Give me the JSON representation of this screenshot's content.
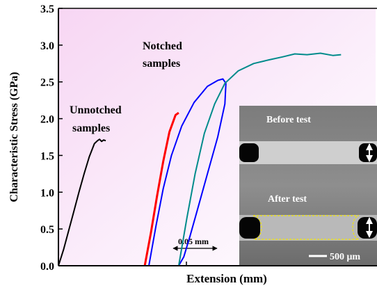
{
  "chart_data": {
    "type": "line",
    "xlabel": "Extension (mm)",
    "ylabel": "Characteristic Stress (GPa)",
    "ylim": [
      0,
      3.5
    ],
    "yticks": [
      0.0,
      0.5,
      1.0,
      1.5,
      2.0,
      2.5,
      3.0,
      3.5
    ],
    "ytick_labels": [
      "0.0",
      "0.5",
      "1.0",
      "1.5",
      "2.0",
      "2.5",
      "3.0",
      "3.5"
    ],
    "x_tick_labels": [],
    "xlim": [
      0,
      0.31
    ],
    "scale_bar": {
      "label": "0.05 mm",
      "length": 0.05
    },
    "annotations": {
      "unnotched": [
        "Unnotched",
        "samples"
      ],
      "notched": [
        "Notched",
        "samples"
      ]
    },
    "series": [
      {
        "color": "#000000",
        "x": [
          0.0,
          0.005,
          0.01,
          0.015,
          0.02,
          0.025,
          0.03,
          0.035,
          0.038,
          0.04,
          0.042,
          0.044,
          0.046
        ],
        "y": [
          0.0,
          0.22,
          0.48,
          0.74,
          1.0,
          1.25,
          1.48,
          1.66,
          1.7,
          1.72,
          1.69,
          1.71,
          1.7
        ]
      },
      {
        "color": "#ff0000",
        "x": [
          0.084,
          0.09,
          0.096,
          0.102,
          0.108,
          0.114,
          0.117
        ],
        "y": [
          0.0,
          0.45,
          0.95,
          1.42,
          1.82,
          2.05,
          2.08
        ]
      },
      {
        "color": "#0000ff",
        "x": [
          0.088,
          0.095,
          0.102,
          0.11,
          0.12,
          0.132,
          0.145,
          0.155,
          0.16,
          0.163,
          0.162,
          0.155,
          0.145,
          0.135,
          0.128,
          0.122,
          0.117
        ],
        "y": [
          0.0,
          0.55,
          1.05,
          1.5,
          1.9,
          2.22,
          2.44,
          2.52,
          2.54,
          2.48,
          2.2,
          1.75,
          1.25,
          0.75,
          0.4,
          0.12,
          0.0
        ]
      },
      {
        "color": "#008b8b",
        "x": [
          0.117,
          0.125,
          0.133,
          0.142,
          0.152,
          0.162,
          0.175,
          0.19,
          0.205,
          0.218,
          0.23,
          0.242,
          0.255,
          0.267,
          0.275
        ],
        "y": [
          0.0,
          0.65,
          1.25,
          1.8,
          2.2,
          2.48,
          2.65,
          2.75,
          2.8,
          2.84,
          2.88,
          2.87,
          2.89,
          2.86,
          2.87
        ]
      }
    ]
  },
  "inset": {
    "before_label": "Before test",
    "after_label": "After test",
    "scale_label": "500 μm"
  }
}
